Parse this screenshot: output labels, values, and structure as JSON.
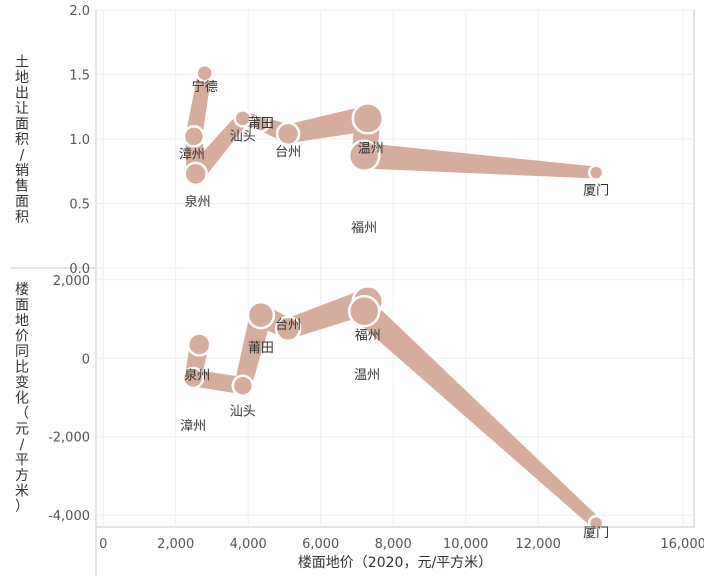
{
  "chart_data": [
    {
      "type": "scatter",
      "panel": "top",
      "ylabel": "土地出让面积/销售面积",
      "xlabel": "楼面地价（2020，元/平方米）",
      "ylim": [
        0,
        2.0
      ],
      "yticks": [
        "0.0",
        "0.5",
        "1.0",
        "1.5",
        "2.0"
      ],
      "grid": true,
      "points": [
        {
          "city": "宁德",
          "x": 2800,
          "y": 1.51,
          "size": 0.3
        },
        {
          "city": "漳州",
          "x": 2500,
          "y": 1.02,
          "size": 0.5
        },
        {
          "city": "泉州",
          "x": 2550,
          "y": 0.73,
          "size": 0.6
        },
        {
          "city": "汕头",
          "x": 3850,
          "y": 1.16,
          "size": 0.3
        },
        {
          "city": "莆田",
          "x": 4350,
          "y": 1.12,
          "size": 0.3
        },
        {
          "city": "台州",
          "x": 5100,
          "y": 1.04,
          "size": 0.6
        },
        {
          "city": "温州",
          "x": 7300,
          "y": 1.16,
          "size": 1.0
        },
        {
          "city": "福州",
          "x": 7200,
          "y": 0.87,
          "size": 1.0
        },
        {
          "city": "厦门",
          "x": 13600,
          "y": 0.74,
          "size": 0.2
        }
      ]
    },
    {
      "type": "scatter",
      "panel": "bottom",
      "ylabel": "楼面地价同比变化（元/平方米）",
      "xlabel": "楼面地价（2020，元/平方米）",
      "ylim": [
        -4300,
        2300
      ],
      "yticks": [
        "-4,000",
        "-2,000",
        "0",
        "2,000"
      ],
      "grid": true,
      "points": [
        {
          "city": "泉州",
          "x": 2650,
          "y": 350,
          "size": 0.6
        },
        {
          "city": "漳州",
          "x": 2480,
          "y": -500,
          "size": 0.5
        },
        {
          "city": "汕头",
          "x": 3850,
          "y": -700,
          "size": 0.5
        },
        {
          "city": "莆田",
          "x": 4350,
          "y": 1100,
          "size": 0.8
        },
        {
          "city": "台州",
          "x": 5100,
          "y": 750,
          "size": 0.7
        },
        {
          "city": "福州",
          "x": 7300,
          "y": 1450,
          "size": 1.0
        },
        {
          "city": "温州",
          "x": 7200,
          "y": 1200,
          "size": 1.0
        },
        {
          "city": "厦门",
          "x": 13600,
          "y": -4200,
          "size": 0.2
        }
      ]
    }
  ],
  "xaxis": {
    "title": "楼面地价（2020，元/平方米）",
    "xlim": [
      -200,
      16300
    ],
    "ticks": [
      {
        "v": 0,
        "label": "0"
      },
      {
        "v": 2000,
        "label": "2,000"
      },
      {
        "v": 4000,
        "label": "4,000"
      },
      {
        "v": 6000,
        "label": "6,000"
      },
      {
        "v": 8000,
        "label": "8,000"
      },
      {
        "v": 10000,
        "label": "10,000"
      },
      {
        "v": 12000,
        "label": "12,000"
      },
      {
        "v": 16000,
        "label": "16,000"
      }
    ]
  },
  "colors": {
    "mark": "#d6ad9d",
    "axis": "#c8c8c8",
    "grid": "#efefef"
  }
}
